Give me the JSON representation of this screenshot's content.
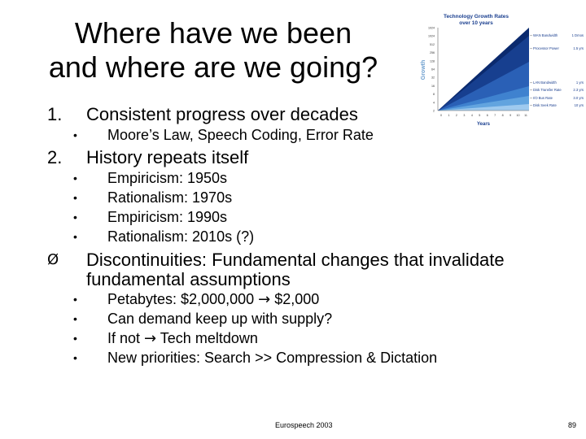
{
  "title": {
    "line1": "Where have we been",
    "line2": "and where are we going?"
  },
  "items": [
    {
      "num": "1.",
      "text": "Consistent progress over decades",
      "subs": [
        "Moore’s Law, Speech Coding, Error Rate"
      ]
    },
    {
      "num": "2.",
      "text": "History repeats itself",
      "subs": [
        "Empiricism: 1950s",
        "Rationalism: 1970s",
        "Empiricism: 1990s",
        "Rationalism: 2010s (?)"
      ]
    }
  ],
  "discontinuities": {
    "marker": "Ø",
    "text_line1": "Discontinuities: Fundamental changes that invalidate",
    "text_line2": "fundamental assumptions",
    "subs": [
      {
        "before": "Petabytes: $2,000,000 ",
        "arrow": "→",
        "after": " $2,000"
      },
      {
        "before": "Can demand keep up with supply?",
        "arrow": "",
        "after": ""
      },
      {
        "before": "If not ",
        "arrow": "→",
        "after": " Tech meltdown"
      },
      {
        "before": "New priorities: Search >> Compression & Dictation",
        "arrow": "",
        "after": ""
      }
    ]
  },
  "bullet_char": "•",
  "footer": {
    "left": "Eurospeech 2003",
    "right": "89"
  },
  "chart_data": {
    "type": "area",
    "title": "Technology Growth Rates",
    "subtitle": "over 10 years",
    "xlabel": "Years",
    "ylabel": "Growth",
    "yticks": [
      "1024",
      "1024",
      "512",
      "256",
      "128",
      "64",
      "32",
      "16",
      "8",
      "4",
      "2"
    ],
    "xticks": [
      "0",
      "1",
      "2",
      "3",
      "4",
      "5",
      "6",
      "7",
      "8",
      "9",
      "10",
      "11"
    ],
    "legend": [
      {
        "label": "WAN Bandwidth",
        "value": "1 Dmos"
      },
      {
        "label": "Processor Power",
        "value": "1.5 yrs"
      },
      {
        "label": "LAN Bandwidth",
        "value": "1 yrs"
      },
      {
        "label": "Disk Transfer Rate",
        "value": "2.3 yrs"
      },
      {
        "label": "I/O Bus Rate",
        "value": "3.0 yrs"
      },
      {
        "label": "Disk Seek Rate",
        "value": "10 yrs"
      }
    ],
    "colors": [
      "#0b2a6e",
      "#173f8f",
      "#2a60b6",
      "#3f82cf",
      "#62a4df",
      "#9fcaef"
    ]
  }
}
